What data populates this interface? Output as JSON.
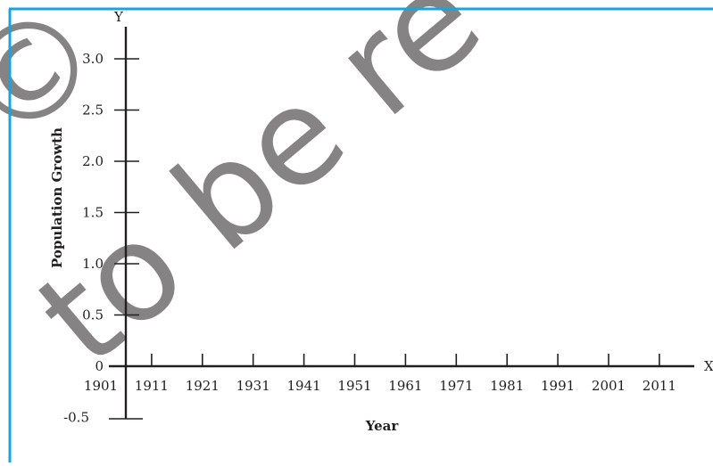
{
  "theme": {
    "frame_color": "#1aa3dc",
    "axis_color": "#231f20",
    "watermark_color": "#dedede"
  },
  "chart_data": {
    "type": "line",
    "title": "",
    "xlabel": "Year",
    "ylabel": "Population Growth",
    "x_axis_letter": "X",
    "y_axis_letter": "Y",
    "x": [
      "1901",
      "1911",
      "1921",
      "1931",
      "1941",
      "1951",
      "1961",
      "1971",
      "1981",
      "1991",
      "2001",
      "2011"
    ],
    "y_ticks": [
      "3.0",
      "2.5",
      "2.0",
      "1.5",
      "1.0",
      "0.5",
      "0",
      "-0.5"
    ],
    "ylim": [
      -0.5,
      3.0
    ],
    "series": [],
    "grid": false,
    "legend": "none"
  }
}
